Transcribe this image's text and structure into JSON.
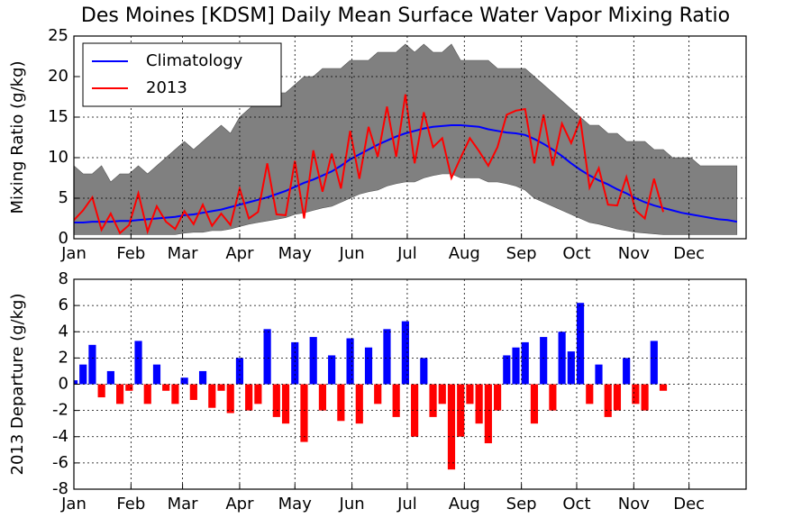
{
  "chart_data": [
    {
      "type": "line",
      "title": "Des Moines [KDSM] Daily Mean Surface Water Vapor Mixing Ratio",
      "ylabel": "Mixing Ratio (g/kg)",
      "x": [
        1,
        6,
        11,
        16,
        21,
        26,
        31,
        36,
        41,
        46,
        51,
        56,
        61,
        66,
        71,
        76,
        81,
        86,
        91,
        96,
        101,
        106,
        111,
        116,
        121,
        126,
        131,
        136,
        141,
        146,
        151,
        156,
        161,
        166,
        171,
        176,
        181,
        186,
        191,
        196,
        201,
        206,
        211,
        216,
        221,
        226,
        231,
        236,
        241,
        246,
        251,
        256,
        261,
        266,
        271,
        276,
        281,
        286,
        291,
        296,
        301,
        306,
        311,
        316,
        321,
        326,
        331,
        336,
        341,
        346,
        351,
        356,
        361
      ],
      "band": {
        "color": "#808080",
        "upper": [
          9,
          8,
          8,
          9,
          7,
          8,
          8,
          9,
          8,
          9,
          10,
          11,
          12,
          11,
          12,
          13,
          14,
          13,
          15,
          16,
          17,
          17,
          18,
          18,
          19,
          20,
          20,
          21,
          21,
          21,
          22,
          22,
          22,
          23,
          23,
          23,
          24,
          23,
          24,
          23,
          23,
          24,
          22,
          22,
          22,
          22,
          21,
          21,
          21,
          21,
          20,
          19,
          18,
          17,
          16,
          15,
          14,
          14,
          13,
          13,
          12,
          12,
          12,
          11,
          11,
          10,
          10,
          10,
          9,
          9,
          9,
          9,
          9
        ],
        "lower": [
          0.5,
          0.5,
          0.5,
          0.5,
          0.5,
          0.5,
          0.5,
          0.5,
          0.5,
          0.5,
          0.5,
          0.5,
          0.7,
          0.8,
          0.8,
          1,
          1,
          1.2,
          1.5,
          1.8,
          2,
          2.2,
          2.4,
          2.6,
          3,
          3.2,
          3.5,
          3.8,
          4,
          4.5,
          5,
          5.5,
          5.8,
          6,
          6.5,
          6.8,
          7,
          7,
          7.5,
          7.8,
          8,
          8,
          7.5,
          7.5,
          7.5,
          7,
          7,
          6.8,
          6.5,
          6,
          5,
          4.5,
          4,
          3.5,
          3,
          2.5,
          2,
          1.8,
          1.5,
          1.2,
          1,
          0.8,
          0.7,
          0.6,
          0.5,
          0.5,
          0.5,
          0.5,
          0.5,
          0.5,
          0.5,
          0.5,
          0.5
        ]
      },
      "series": [
        {
          "name": "Climatology",
          "color": "#0000ff",
          "values": [
            2.0,
            2.0,
            2.1,
            2.1,
            2.1,
            2.2,
            2.2,
            2.3,
            2.4,
            2.5,
            2.6,
            2.7,
            2.9,
            3.0,
            3.2,
            3.4,
            3.6,
            3.9,
            4.2,
            4.5,
            4.8,
            5.1,
            5.5,
            5.9,
            6.4,
            6.9,
            7.3,
            7.8,
            8.3,
            9.0,
            9.8,
            10.4,
            11.0,
            11.6,
            12.1,
            12.6,
            13.0,
            13.3,
            13.6,
            13.8,
            13.9,
            14.0,
            14.0,
            13.9,
            13.8,
            13.5,
            13.3,
            13.1,
            13.0,
            12.8,
            12.3,
            11.7,
            11.0,
            10.2,
            9.3,
            8.5,
            7.8,
            7.2,
            6.7,
            6.1,
            5.6,
            5.0,
            4.5,
            4.1,
            3.8,
            3.5,
            3.2,
            3.0,
            2.8,
            2.6,
            2.4,
            2.3,
            2.1
          ]
        },
        {
          "name": "2013",
          "color": "#ff0000",
          "values": [
            2.3,
            3.5,
            5.1,
            1.1,
            3.1,
            0.7,
            1.7,
            5.6,
            0.9,
            4.0,
            2.1,
            1.2,
            3.4,
            1.8,
            4.2,
            1.6,
            3.1,
            1.7,
            6.2,
            2.5,
            3.3,
            9.3,
            3.0,
            2.9,
            9.6,
            2.5,
            10.9,
            5.8,
            10.5,
            6.2,
            13.3,
            7.4,
            13.8,
            10.1,
            16.3,
            10.1,
            17.8,
            9.3,
            15.6,
            11.3,
            12.4,
            7.5,
            10.0,
            12.4,
            10.8,
            9.0,
            11.3,
            15.3,
            15.8,
            16.0,
            9.3,
            15.3,
            9.0,
            14.2,
            11.8,
            14.7,
            6.3,
            8.7,
            4.2,
            4.1,
            7.6,
            3.5,
            2.5,
            7.4,
            3.3,
            null,
            null,
            null,
            null,
            null,
            null,
            null,
            null
          ]
        }
      ],
      "xlim": [
        1,
        366
      ],
      "xticks": [
        {
          "value": 1,
          "label": "Jan"
        },
        {
          "value": 32,
          "label": "Feb"
        },
        {
          "value": 60,
          "label": "Mar"
        },
        {
          "value": 91,
          "label": "Apr"
        },
        {
          "value": 121,
          "label": "May"
        },
        {
          "value": 152,
          "label": "Jun"
        },
        {
          "value": 182,
          "label": "Jul"
        },
        {
          "value": 213,
          "label": "Aug"
        },
        {
          "value": 244,
          "label": "Sep"
        },
        {
          "value": 274,
          "label": "Oct"
        },
        {
          "value": 305,
          "label": "Nov"
        },
        {
          "value": 335,
          "label": "Dec"
        }
      ],
      "ylim": [
        0,
        25
      ],
      "yticks": [
        0,
        5,
        10,
        15,
        20,
        25
      ],
      "grid": true,
      "legend": "upper left"
    },
    {
      "type": "bar",
      "ylabel": "2013 Departure (g/kg)",
      "x": [
        1,
        6,
        11,
        16,
        21,
        26,
        31,
        36,
        41,
        46,
        51,
        56,
        61,
        66,
        71,
        76,
        81,
        86,
        91,
        96,
        101,
        106,
        111,
        116,
        121,
        126,
        131,
        136,
        141,
        146,
        151,
        156,
        161,
        166,
        171,
        176,
        181,
        186,
        191,
        196,
        201,
        206,
        211,
        216,
        221,
        226,
        231,
        236,
        241,
        246,
        251,
        256,
        261,
        266,
        271,
        276,
        281,
        286,
        291,
        296,
        301,
        306,
        311,
        316,
        321
      ],
      "values": [
        0.3,
        1.5,
        3,
        -1,
        1,
        -1.5,
        -0.5,
        3.3,
        -1.5,
        1.5,
        -0.5,
        -1.5,
        0.5,
        -1.2,
        1,
        -1.8,
        -0.5,
        -2.2,
        2,
        -2,
        -1.5,
        4.2,
        -2.5,
        -3,
        3.2,
        -4.4,
        3.6,
        -2,
        2.2,
        -2.8,
        3.5,
        -3,
        2.8,
        -1.5,
        4.2,
        -2.5,
        4.8,
        -4,
        2,
        -2.5,
        -1.5,
        -6.5,
        -4,
        -1.5,
        -3,
        -4.5,
        -2,
        2.2,
        2.8,
        3.2,
        -3,
        3.6,
        -2,
        4,
        2.5,
        6.2,
        -1.5,
        1.5,
        -2.5,
        -2,
        2,
        -1.5,
        -2,
        3.3,
        -0.5
      ],
      "positive_color": "#0000ff",
      "negative_color": "#ff0000",
      "xlim": [
        1,
        366
      ],
      "xticks": [
        {
          "value": 1,
          "label": "Jan"
        },
        {
          "value": 32,
          "label": "Feb"
        },
        {
          "value": 60,
          "label": "Mar"
        },
        {
          "value": 91,
          "label": "Apr"
        },
        {
          "value": 121,
          "label": "May"
        },
        {
          "value": 152,
          "label": "Jun"
        },
        {
          "value": 182,
          "label": "Jul"
        },
        {
          "value": 213,
          "label": "Aug"
        },
        {
          "value": 244,
          "label": "Sep"
        },
        {
          "value": 274,
          "label": "Oct"
        },
        {
          "value": 305,
          "label": "Nov"
        },
        {
          "value": 335,
          "label": "Dec"
        }
      ],
      "ylim": [
        -8,
        8
      ],
      "yticks": [
        -8,
        -6,
        -4,
        -2,
        0,
        2,
        4,
        6,
        8
      ],
      "grid": true
    }
  ]
}
